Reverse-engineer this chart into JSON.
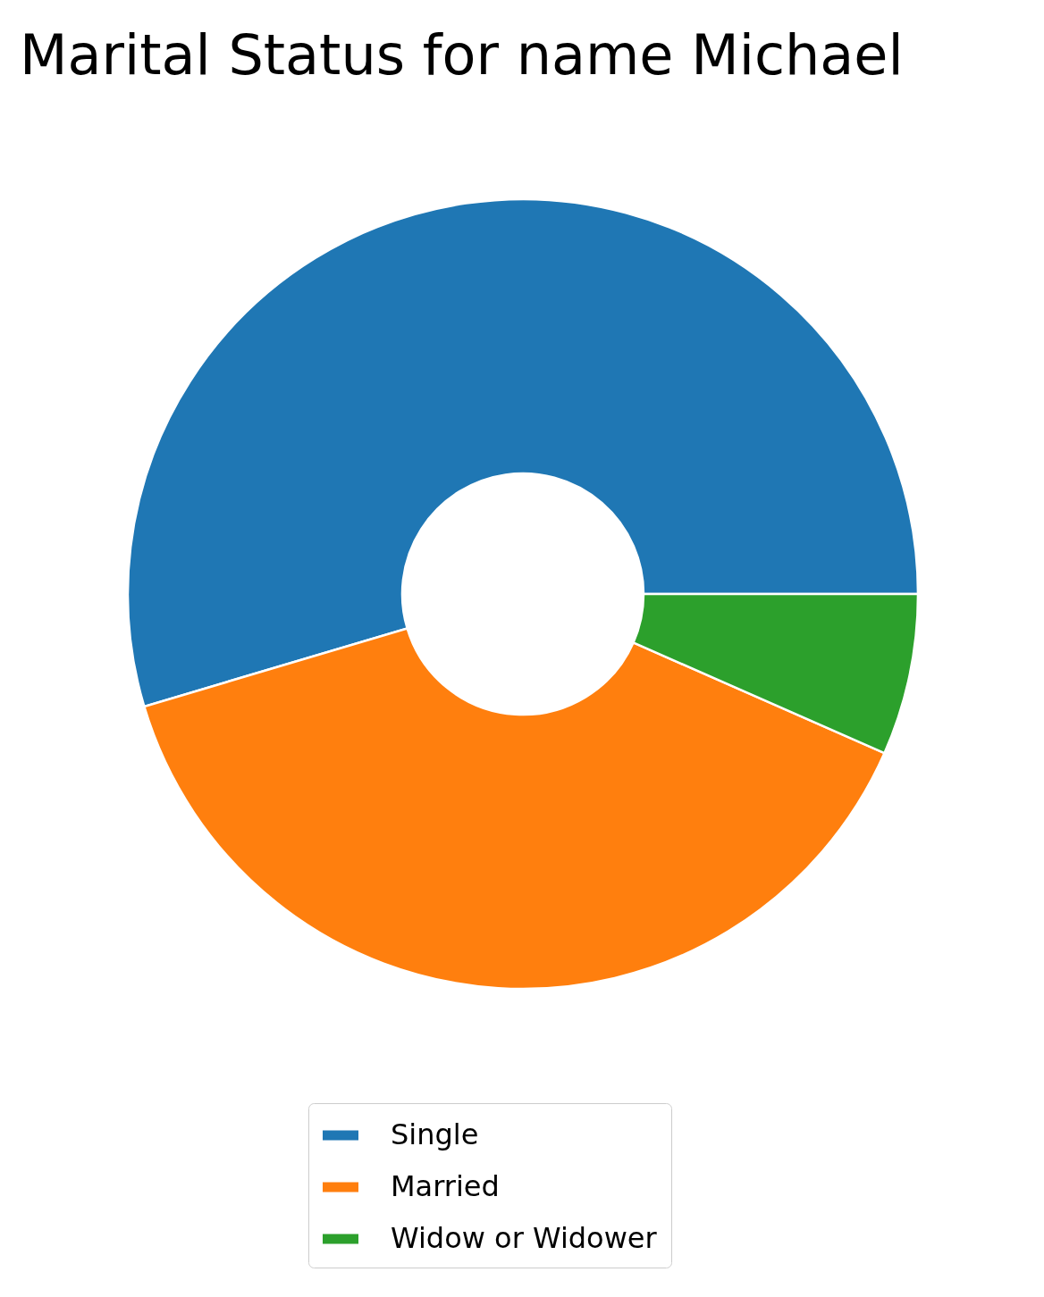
{
  "chart_data": {
    "type": "donut",
    "title": "Marital Status for name Michael",
    "categories": [
      "Single",
      "Married",
      "Widow or Widower"
    ],
    "values": [
      54.6,
      38.8,
      6.6
    ],
    "colors": [
      "#1f77b4",
      "#ff7f0e",
      "#2ca02c"
    ],
    "legend": "bottom"
  }
}
